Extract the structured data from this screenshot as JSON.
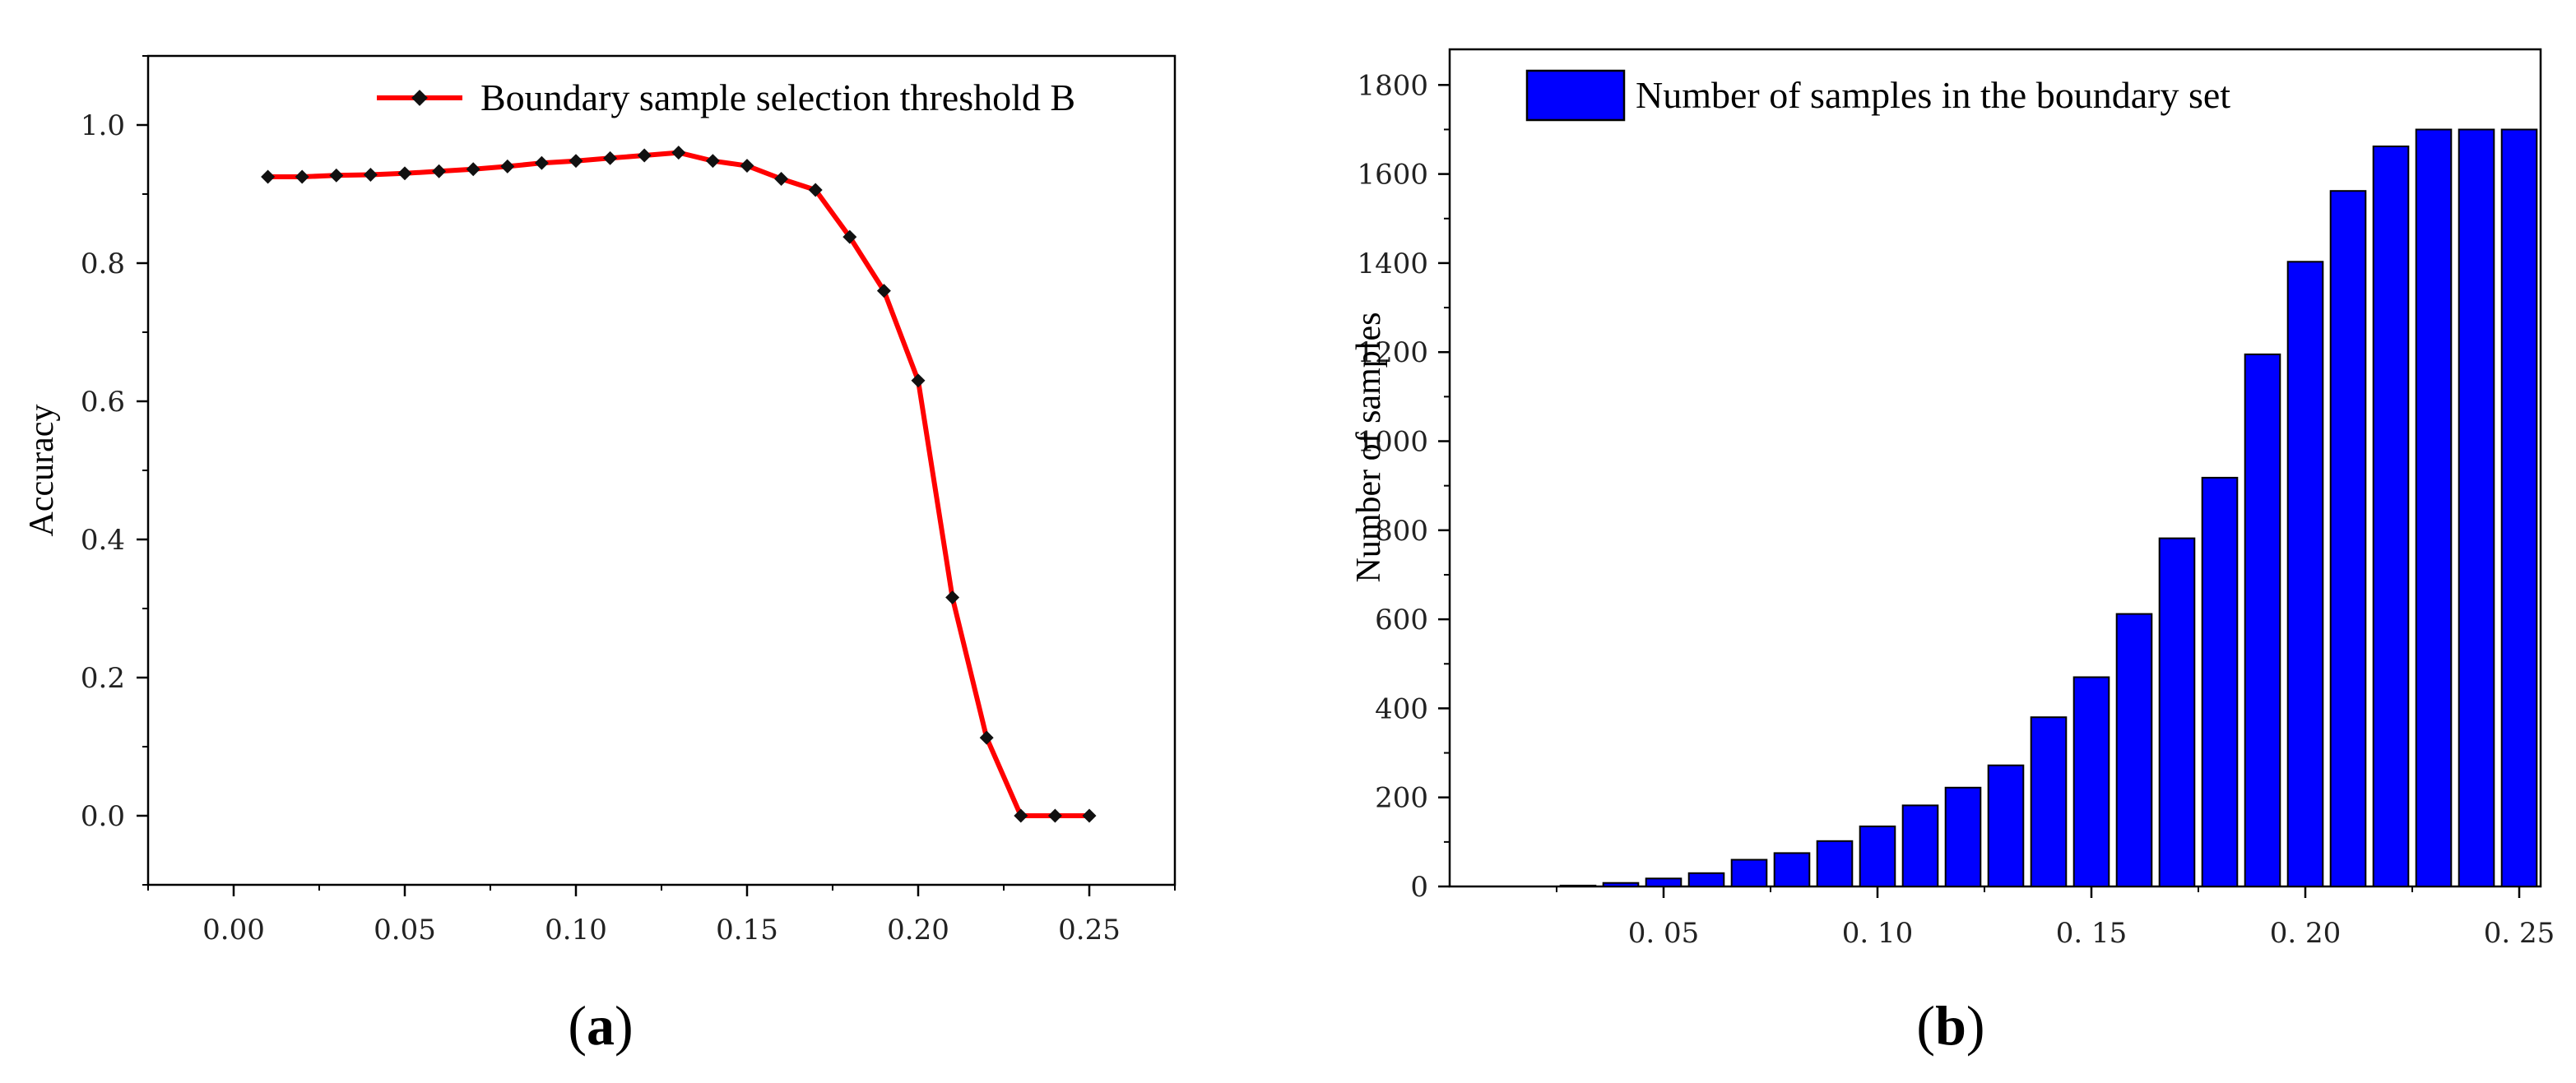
{
  "chart_data": [
    {
      "type": "line",
      "panel_label": "a",
      "title": "",
      "xlabel": "",
      "ylabel": "Accuracy",
      "xlim": [
        -0.025,
        0.275
      ],
      "ylim": [
        -0.1,
        1.1
      ],
      "xticks": [
        0.0,
        0.05,
        0.1,
        0.15,
        0.2,
        0.25
      ],
      "xtick_labels": [
        "0.00",
        "0.05",
        "0.10",
        "0.15",
        "0.20",
        "0.25"
      ],
      "yticks": [
        0.0,
        0.2,
        0.4,
        0.6,
        0.8,
        1.0
      ],
      "ytick_labels": [
        "0.0",
        "0.2",
        "0.4",
        "0.6",
        "0.8",
        "1.0"
      ],
      "legend_position": "top-right",
      "colors": {
        "line": "#ff0000",
        "marker": "#111111"
      },
      "series": [
        {
          "name": "Boundary sample selection threshold B",
          "x": [
            0.01,
            0.02,
            0.03,
            0.04,
            0.05,
            0.06,
            0.07,
            0.08,
            0.09,
            0.1,
            0.11,
            0.12,
            0.13,
            0.14,
            0.15,
            0.16,
            0.17,
            0.18,
            0.19,
            0.2,
            0.21,
            0.22,
            0.23,
            0.24,
            0.25
          ],
          "values": [
            0.925,
            0.925,
            0.927,
            0.928,
            0.93,
            0.933,
            0.936,
            0.94,
            0.945,
            0.948,
            0.952,
            0.956,
            0.96,
            0.948,
            0.941,
            0.922,
            0.906,
            0.838,
            0.76,
            0.63,
            0.316,
            0.113,
            0.0,
            0.0,
            0.0
          ]
        }
      ]
    },
    {
      "type": "bar",
      "panel_label": "b",
      "title": "",
      "xlabel": "",
      "ylabel": "Number of samples",
      "xlim": [
        0.0,
        0.255
      ],
      "ylim": [
        0,
        1880
      ],
      "xticks": [
        0.05,
        0.1,
        0.15,
        0.2,
        0.25
      ],
      "xtick_labels": [
        "0. 05",
        "0. 10",
        "0. 15",
        "0. 20",
        "0. 25"
      ],
      "yticks": [
        0,
        200,
        400,
        600,
        800,
        1000,
        1200,
        1400,
        1600,
        1800
      ],
      "ytick_labels": [
        "0",
        "200",
        "400",
        "600",
        "800",
        "1000",
        "1200",
        "1400",
        "1600",
        "1800"
      ],
      "legend_position": "top-left",
      "colors": {
        "bar": "#0000ff",
        "edge": "#000000"
      },
      "series": [
        {
          "name": "Number of samples in the boundary set",
          "x": [
            0.01,
            0.02,
            0.03,
            0.04,
            0.05,
            0.06,
            0.07,
            0.08,
            0.09,
            0.1,
            0.11,
            0.12,
            0.13,
            0.14,
            0.15,
            0.16,
            0.17,
            0.18,
            0.19,
            0.2,
            0.21,
            0.22,
            0.23,
            0.24,
            0.25
          ],
          "values": [
            0,
            0,
            2,
            8,
            18,
            30,
            60,
            75,
            102,
            135,
            182,
            222,
            272,
            380,
            470,
            612,
            782,
            918,
            1195,
            1403,
            1562,
            1662,
            1700,
            1700,
            1700
          ]
        }
      ]
    }
  ]
}
